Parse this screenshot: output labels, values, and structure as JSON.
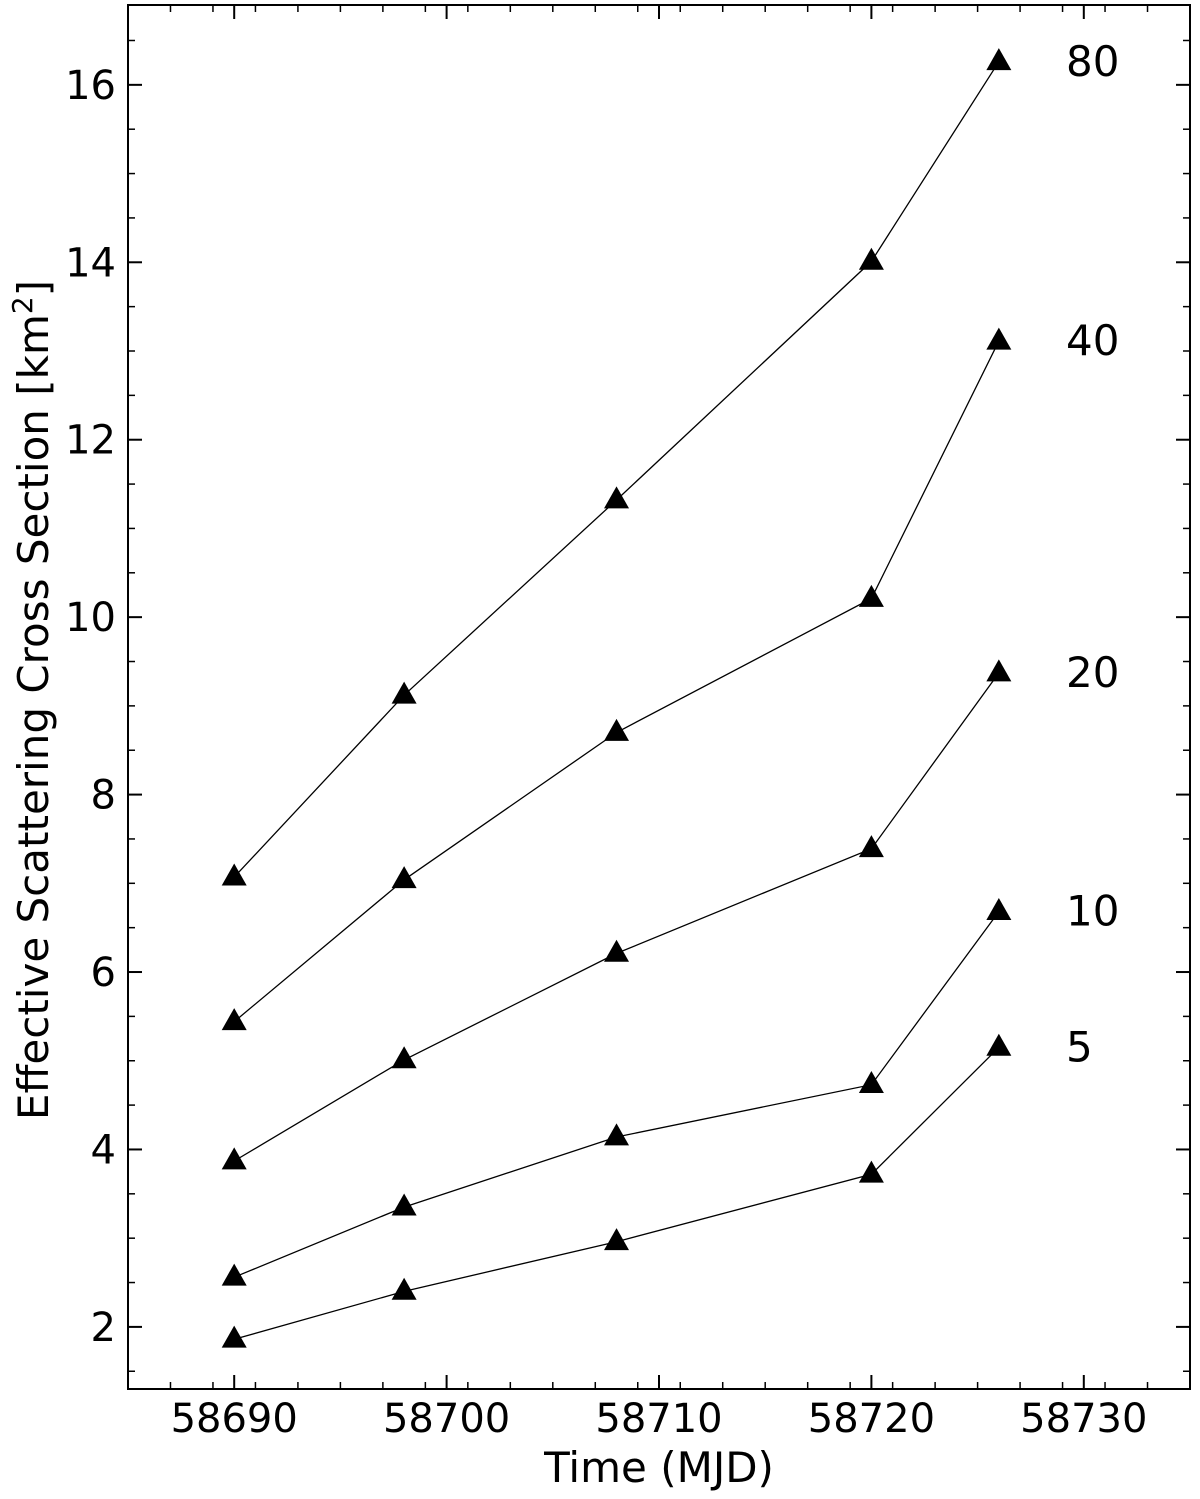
{
  "chart_data": {
    "type": "line",
    "xlabel": "Time (MJD)",
    "ylabel_main": "Effective Scattering Cross Section [km",
    "ylabel_sup": "2",
    "ylabel_end": "]",
    "xlim": [
      58685,
      58735
    ],
    "ylim": [
      1.3,
      16.9
    ],
    "x_ticks": [
      58690,
      58700,
      58710,
      58720,
      58730
    ],
    "y_ticks": [
      2,
      4,
      6,
      8,
      10,
      12,
      14,
      16
    ],
    "x": [
      58690,
      58698,
      58708,
      58720,
      58726
    ],
    "marker": "triangle",
    "line_color": "#000000",
    "grid": false,
    "series": [
      {
        "name": "80",
        "values": [
          7.07,
          9.12,
          11.32,
          14.01,
          16.26
        ]
      },
      {
        "name": "40",
        "values": [
          5.44,
          7.04,
          8.7,
          10.21,
          13.11
        ]
      },
      {
        "name": "20",
        "values": [
          3.87,
          5.01,
          6.21,
          7.39,
          9.37
        ]
      },
      {
        "name": "10",
        "values": [
          2.56,
          3.35,
          4.14,
          4.73,
          6.68
        ]
      },
      {
        "name": "5",
        "values": [
          1.86,
          2.4,
          2.96,
          3.72,
          5.15
        ]
      }
    ]
  }
}
